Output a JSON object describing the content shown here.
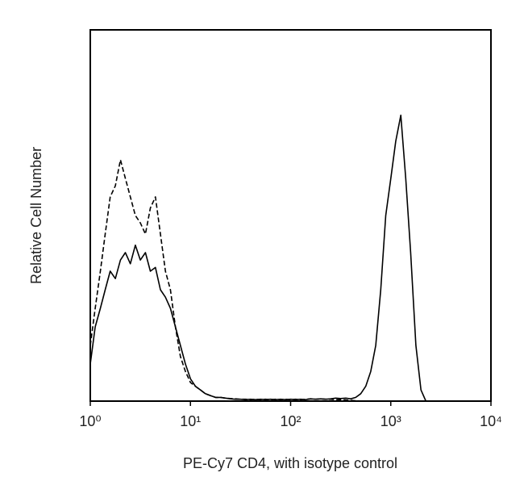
{
  "chart_data": {
    "type": "line",
    "xlabel": "PE-Cy7 CD4, with isotype control",
    "ylabel": "Relative Cell Number",
    "xscale": "log",
    "xlim": [
      1,
      10000
    ],
    "xticks": [
      {
        "value": 1,
        "label": "10⁰"
      },
      {
        "value": 10,
        "label": "10¹"
      },
      {
        "value": 100,
        "label": "10²"
      },
      {
        "value": 1000,
        "label": "10³"
      },
      {
        "value": 10000,
        "label": "10⁴"
      }
    ],
    "ylim": [
      0,
      100
    ],
    "x": [
      1,
      1.12,
      1.26,
      1.41,
      1.58,
      1.78,
      2.0,
      2.24,
      2.51,
      2.82,
      3.16,
      3.55,
      3.98,
      4.47,
      5.01,
      5.62,
      6.31,
      7.08,
      7.94,
      8.91,
      10,
      11.2,
      12.6,
      14.1,
      15.8,
      17.8,
      20.0,
      22.4,
      25.1,
      28.2,
      31.6,
      35.5,
      39.8,
      44.7,
      50.1,
      56.2,
      63.1,
      70.8,
      79.4,
      89.1,
      100,
      112,
      126,
      141,
      158,
      178,
      200,
      224,
      251,
      282,
      316,
      355,
      398,
      447,
      501,
      562,
      631,
      708,
      794,
      891,
      1000,
      1120,
      1260,
      1410,
      1580,
      1780,
      2000,
      2240,
      2510
    ],
    "series": [
      {
        "color": "#000000",
        "dashed": false,
        "values": [
          10,
          20,
          25,
          30,
          35,
          33,
          38,
          40,
          37,
          42,
          38,
          40,
          35,
          36,
          30,
          28,
          25,
          20,
          15,
          10,
          6,
          4,
          3,
          2,
          1.5,
          1,
          1,
          0.8,
          0.6,
          0.5,
          0.5,
          0.4,
          0.5,
          0.4,
          0.5,
          0.4,
          0.5,
          0.4,
          0.5,
          0.4,
          0.5,
          0.4,
          0.5,
          0.4,
          0.6,
          0.5,
          0.6,
          0.5,
          0.6,
          0.8,
          0.7,
          0.8,
          0.6,
          1,
          2,
          4,
          8,
          15,
          30,
          50,
          60,
          70,
          77,
          60,
          40,
          15,
          3,
          0,
          0
        ]
      },
      {
        "color": "#000000",
        "dashed": true,
        "values": [
          15,
          25,
          35,
          45,
          55,
          58,
          65,
          60,
          55,
          50,
          48,
          45,
          52,
          55,
          45,
          35,
          30,
          20,
          12,
          8,
          5,
          4,
          3,
          2,
          1.5,
          1,
          1,
          0.8,
          0.7,
          0.6,
          0.5,
          0.5,
          0.4,
          0.5,
          0.4,
          0.5,
          0.4,
          0.5,
          0.4,
          0.5,
          0.4,
          0.5,
          0.4,
          0.5,
          0.6,
          0.5,
          0.6,
          0.5,
          0.5,
          0.4,
          0.4,
          0.3,
          0.2,
          0.1,
          0,
          0,
          0,
          0,
          0,
          0,
          0,
          0,
          0,
          0,
          0,
          0,
          0,
          0,
          0
        ]
      }
    ]
  }
}
